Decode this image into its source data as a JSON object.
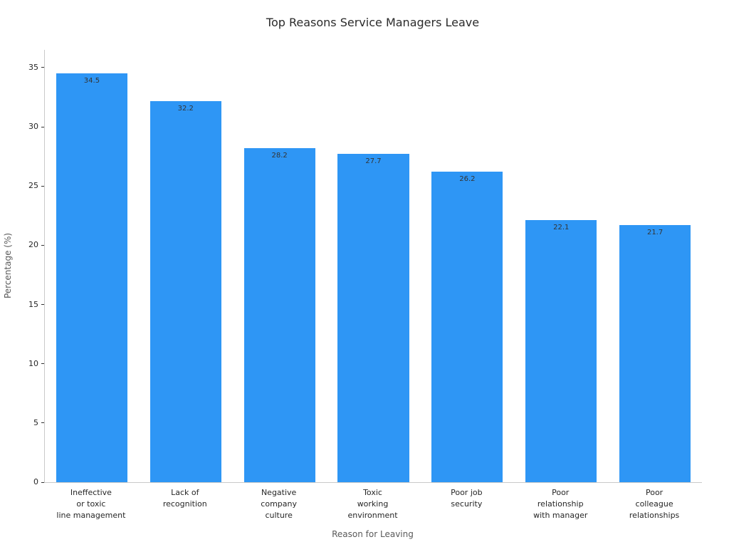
{
  "chart_data": {
    "type": "bar",
    "title": "Top Reasons Service Managers Leave",
    "xlabel": "Reason for Leaving",
    "ylabel": "Percentage (%)",
    "categories": [
      "Ineffective\nor toxic\nline management",
      "Lack of\nrecognition",
      "Negative\ncompany\nculture",
      "Toxic\nworking\nenvironment",
      "Poor job\nsecurity",
      "Poor\nrelationship\nwith manager",
      "Poor\ncolleague\nrelationships"
    ],
    "values": [
      34.5,
      32.2,
      28.2,
      27.7,
      26.2,
      22.1,
      21.7
    ],
    "value_labels": [
      "34.5",
      "32.2",
      "28.2",
      "27.7",
      "26.2",
      "22.1",
      "21.7"
    ],
    "yticks": [
      0,
      5,
      10,
      15,
      20,
      25,
      30,
      35
    ],
    "ylim": [
      0,
      36.5
    ],
    "bar_color": "#2E96F5",
    "value_label_color": "#333333",
    "axis_color": "#c9c9c9",
    "grid": false,
    "legend": false
  }
}
